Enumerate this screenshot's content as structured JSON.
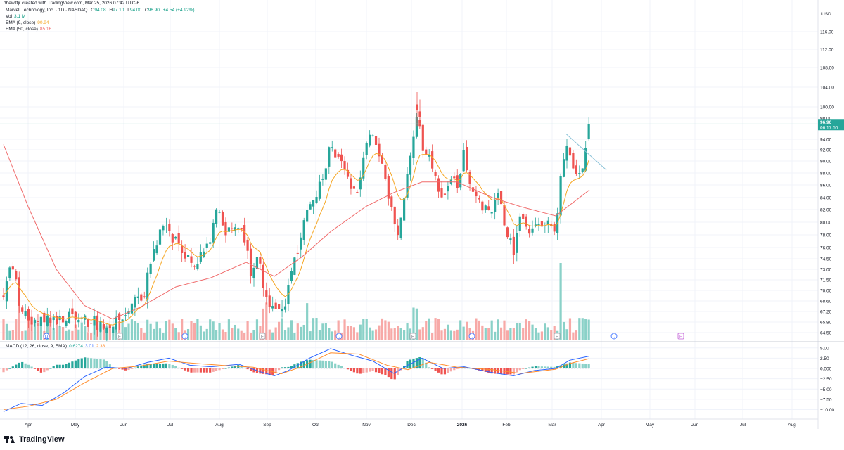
{
  "credit": "dhewittjr created with TradingView.com, Mar 25, 2026 07:42 UTC-6",
  "header": {
    "symbol": "Marvell Technology, Inc. · 1D · NASDAQ",
    "o_label": "O",
    "o_value": "94.08",
    "h_label": "H",
    "h_value": "97.10",
    "l_label": "L",
    "l_value": "94.00",
    "c_label": "C",
    "c_value": "96.90",
    "change": "+4.54 (+4.92%)",
    "vol_label": "Vol",
    "vol_value": "3.1 M",
    "ema9_label": "EMA (9, close)",
    "ema9_value": "90.94",
    "ema50_label": "EMA (50, close)",
    "ema50_value": "85.16",
    "macd_label": "MACD (12, 26, close, 9, EMA)",
    "macd_values": [
      "0.6274",
      "3.01",
      "2.38"
    ]
  },
  "currency": "USD",
  "last_price": "96.90",
  "countdown": "06:17:50",
  "brand": "TradingView",
  "colors": {
    "up": "#26a69a",
    "down": "#ef5350",
    "up_vol": "#8ad1c8",
    "down_vol": "#f7a9a7",
    "ema9": "#f5a623",
    "ema50": "#f06b6b",
    "macd": "#2962ff",
    "signal": "#ff8c2b",
    "trendline": "#8cc3d8",
    "grid": "#f0f3fa",
    "axis_text": "#131722"
  },
  "chart_data": {
    "type": "candlestick",
    "price_axis_ticks": [
      "116.00",
      "112.00",
      "108.00",
      "104.00",
      "100.00",
      "98.00",
      "94.00",
      "92.00",
      "90.00",
      "88.00",
      "86.00",
      "84.00",
      "82.00",
      "80.00",
      "78.00",
      "76.00",
      "74.50",
      "73.00",
      "71.50",
      "70.00",
      "68.60",
      "67.20",
      "65.80",
      "64.50"
    ],
    "macd_axis_ticks": [
      "5.00",
      "2.50",
      "0.000",
      "−2.50",
      "−5.00",
      "−7.50",
      "−10.00"
    ],
    "time_axis_labels": [
      "Apr",
      "May",
      "Jun",
      "Jul",
      "Aug",
      "Sep",
      "Oct",
      "Nov",
      "Dec",
      "2026",
      "Feb",
      "Mar",
      "Apr",
      "May",
      "Jun",
      "Jul",
      "Aug"
    ],
    "event_markers": [
      "D",
      "E",
      "D",
      "E",
      "D",
      "E",
      "D",
      "E",
      "D",
      "E"
    ],
    "price_keypoints": [
      {
        "x": 5,
        "p": 69.5
      },
      {
        "x": 12,
        "p": 73.5
      },
      {
        "x": 20,
        "p": 72.8
      },
      {
        "x": 28,
        "p": 68.2
      },
      {
        "x": 40,
        "p": 66.0
      },
      {
        "x": 60,
        "p": 66.3
      },
      {
        "x": 80,
        "p": 66.0
      },
      {
        "x": 100,
        "p": 66.7
      },
      {
        "x": 120,
        "p": 66.0
      },
      {
        "x": 140,
        "p": 65.6
      },
      {
        "x": 160,
        "p": 65.8
      },
      {
        "x": 175,
        "p": 66.3
      },
      {
        "x": 190,
        "p": 68.2
      },
      {
        "x": 205,
        "p": 69.8
      },
      {
        "x": 218,
        "p": 76.0
      },
      {
        "x": 225,
        "p": 77.0
      },
      {
        "x": 233,
        "p": 80.3
      },
      {
        "x": 245,
        "p": 77.5
      },
      {
        "x": 258,
        "p": 76.0
      },
      {
        "x": 270,
        "p": 73.8
      },
      {
        "x": 285,
        "p": 74.5
      },
      {
        "x": 300,
        "p": 76.8
      },
      {
        "x": 308,
        "p": 83.0
      },
      {
        "x": 318,
        "p": 78.0
      },
      {
        "x": 330,
        "p": 79.0
      },
      {
        "x": 342,
        "p": 80.0
      },
      {
        "x": 352,
        "p": 75.5
      },
      {
        "x": 358,
        "p": 71.5
      },
      {
        "x": 368,
        "p": 76.0
      },
      {
        "x": 378,
        "p": 68.5
      },
      {
        "x": 392,
        "p": 67.5
      },
      {
        "x": 405,
        "p": 67.8
      },
      {
        "x": 415,
        "p": 72.5
      },
      {
        "x": 425,
        "p": 76.0
      },
      {
        "x": 435,
        "p": 81.0
      },
      {
        "x": 448,
        "p": 84.5
      },
      {
        "x": 460,
        "p": 87.0
      },
      {
        "x": 470,
        "p": 93.5
      },
      {
        "x": 482,
        "p": 90.0
      },
      {
        "x": 495,
        "p": 87.5
      },
      {
        "x": 505,
        "p": 84.0
      },
      {
        "x": 515,
        "p": 89.0
      },
      {
        "x": 522,
        "p": 93.5
      },
      {
        "x": 532,
        "p": 95.0
      },
      {
        "x": 545,
        "p": 88.0
      },
      {
        "x": 560,
        "p": 80.5
      },
      {
        "x": 568,
        "p": 78.0
      },
      {
        "x": 575,
        "p": 84.5
      },
      {
        "x": 585,
        "p": 92.5
      },
      {
        "x": 593,
        "p": 99.5
      },
      {
        "x": 600,
        "p": 93.0
      },
      {
        "x": 612,
        "p": 90.0
      },
      {
        "x": 625,
        "p": 84.0
      },
      {
        "x": 640,
        "p": 86.5
      },
      {
        "x": 652,
        "p": 86.0
      },
      {
        "x": 660,
        "p": 92.0
      },
      {
        "x": 668,
        "p": 86.0
      },
      {
        "x": 680,
        "p": 83.5
      },
      {
        "x": 695,
        "p": 81.0
      },
      {
        "x": 710,
        "p": 85.0
      },
      {
        "x": 718,
        "p": 79.5
      },
      {
        "x": 725,
        "p": 77.0
      },
      {
        "x": 732,
        "p": 75.5
      },
      {
        "x": 740,
        "p": 81.5
      },
      {
        "x": 750,
        "p": 79.0
      },
      {
        "x": 765,
        "p": 78.8
      },
      {
        "x": 780,
        "p": 80.8
      },
      {
        "x": 790,
        "p": 77.0
      },
      {
        "x": 797,
        "p": 87.0
      },
      {
        "x": 805,
        "p": 93.5
      },
      {
        "x": 815,
        "p": 89.0
      },
      {
        "x": 825,
        "p": 87.5
      },
      {
        "x": 832,
        "p": 91.0
      },
      {
        "x": 838,
        "p": 96.9
      }
    ],
    "ema50_keypoints": [
      {
        "x": 5,
        "p": 93.0
      },
      {
        "x": 40,
        "p": 82.5
      },
      {
        "x": 80,
        "p": 73.0
      },
      {
        "x": 120,
        "p": 68.0
      },
      {
        "x": 160,
        "p": 66.2
      },
      {
        "x": 200,
        "p": 67.8
      },
      {
        "x": 250,
        "p": 70.5
      },
      {
        "x": 300,
        "p": 71.8
      },
      {
        "x": 350,
        "p": 74.0
      },
      {
        "x": 390,
        "p": 72.0
      },
      {
        "x": 430,
        "p": 74.8
      },
      {
        "x": 470,
        "p": 78.5
      },
      {
        "x": 520,
        "p": 82.5
      },
      {
        "x": 560,
        "p": 84.8
      },
      {
        "x": 600,
        "p": 86.5
      },
      {
        "x": 650,
        "p": 86.5
      },
      {
        "x": 700,
        "p": 84.0
      },
      {
        "x": 740,
        "p": 82.5
      },
      {
        "x": 790,
        "p": 81.0
      },
      {
        "x": 838,
        "p": 85.2
      }
    ],
    "trendline": {
      "x1": 805,
      "p1": 95.0,
      "x2": 862,
      "p2": 88.5
    },
    "macd_line_keypoints": [
      {
        "x": 5,
        "v": -10.5
      },
      {
        "x": 30,
        "v": -8.5
      },
      {
        "x": 60,
        "v": -9.0
      },
      {
        "x": 90,
        "v": -6.0
      },
      {
        "x": 120,
        "v": -2.0
      },
      {
        "x": 150,
        "v": 0.3
      },
      {
        "x": 180,
        "v": 0.0
      },
      {
        "x": 210,
        "v": 1.5
      },
      {
        "x": 240,
        "v": 2.5
      },
      {
        "x": 270,
        "v": 0.8
      },
      {
        "x": 300,
        "v": 0.4
      },
      {
        "x": 340,
        "v": 1.0
      },
      {
        "x": 370,
        "v": -0.8
      },
      {
        "x": 390,
        "v": -1.8
      },
      {
        "x": 410,
        "v": -0.5
      },
      {
        "x": 440,
        "v": 2.5
      },
      {
        "x": 470,
        "v": 4.8
      },
      {
        "x": 500,
        "v": 3.2
      },
      {
        "x": 530,
        "v": 1.8
      },
      {
        "x": 560,
        "v": -1.2
      },
      {
        "x": 580,
        "v": 0.8
      },
      {
        "x": 600,
        "v": 2.5
      },
      {
        "x": 630,
        "v": 0.0
      },
      {
        "x": 660,
        "v": 0.4
      },
      {
        "x": 700,
        "v": -1.0
      },
      {
        "x": 730,
        "v": -1.8
      },
      {
        "x": 760,
        "v": -0.5
      },
      {
        "x": 790,
        "v": 0.0
      },
      {
        "x": 810,
        "v": 2.0
      },
      {
        "x": 838,
        "v": 3.0
      }
    ],
    "signal_line_keypoints": [
      {
        "x": 5,
        "v": -10.0
      },
      {
        "x": 40,
        "v": -9.2
      },
      {
        "x": 80,
        "v": -7.5
      },
      {
        "x": 120,
        "v": -3.5
      },
      {
        "x": 160,
        "v": 0.0
      },
      {
        "x": 200,
        "v": 0.6
      },
      {
        "x": 240,
        "v": 1.8
      },
      {
        "x": 280,
        "v": 1.2
      },
      {
        "x": 320,
        "v": 0.7
      },
      {
        "x": 360,
        "v": 0.3
      },
      {
        "x": 400,
        "v": -1.3
      },
      {
        "x": 430,
        "v": 0.5
      },
      {
        "x": 470,
        "v": 3.8
      },
      {
        "x": 510,
        "v": 3.5
      },
      {
        "x": 550,
        "v": 0.8
      },
      {
        "x": 580,
        "v": -0.3
      },
      {
        "x": 610,
        "v": 1.5
      },
      {
        "x": 650,
        "v": 0.3
      },
      {
        "x": 700,
        "v": -0.3
      },
      {
        "x": 740,
        "v": -1.2
      },
      {
        "x": 790,
        "v": -0.2
      },
      {
        "x": 810,
        "v": 1.2
      },
      {
        "x": 838,
        "v": 2.4
      }
    ]
  }
}
